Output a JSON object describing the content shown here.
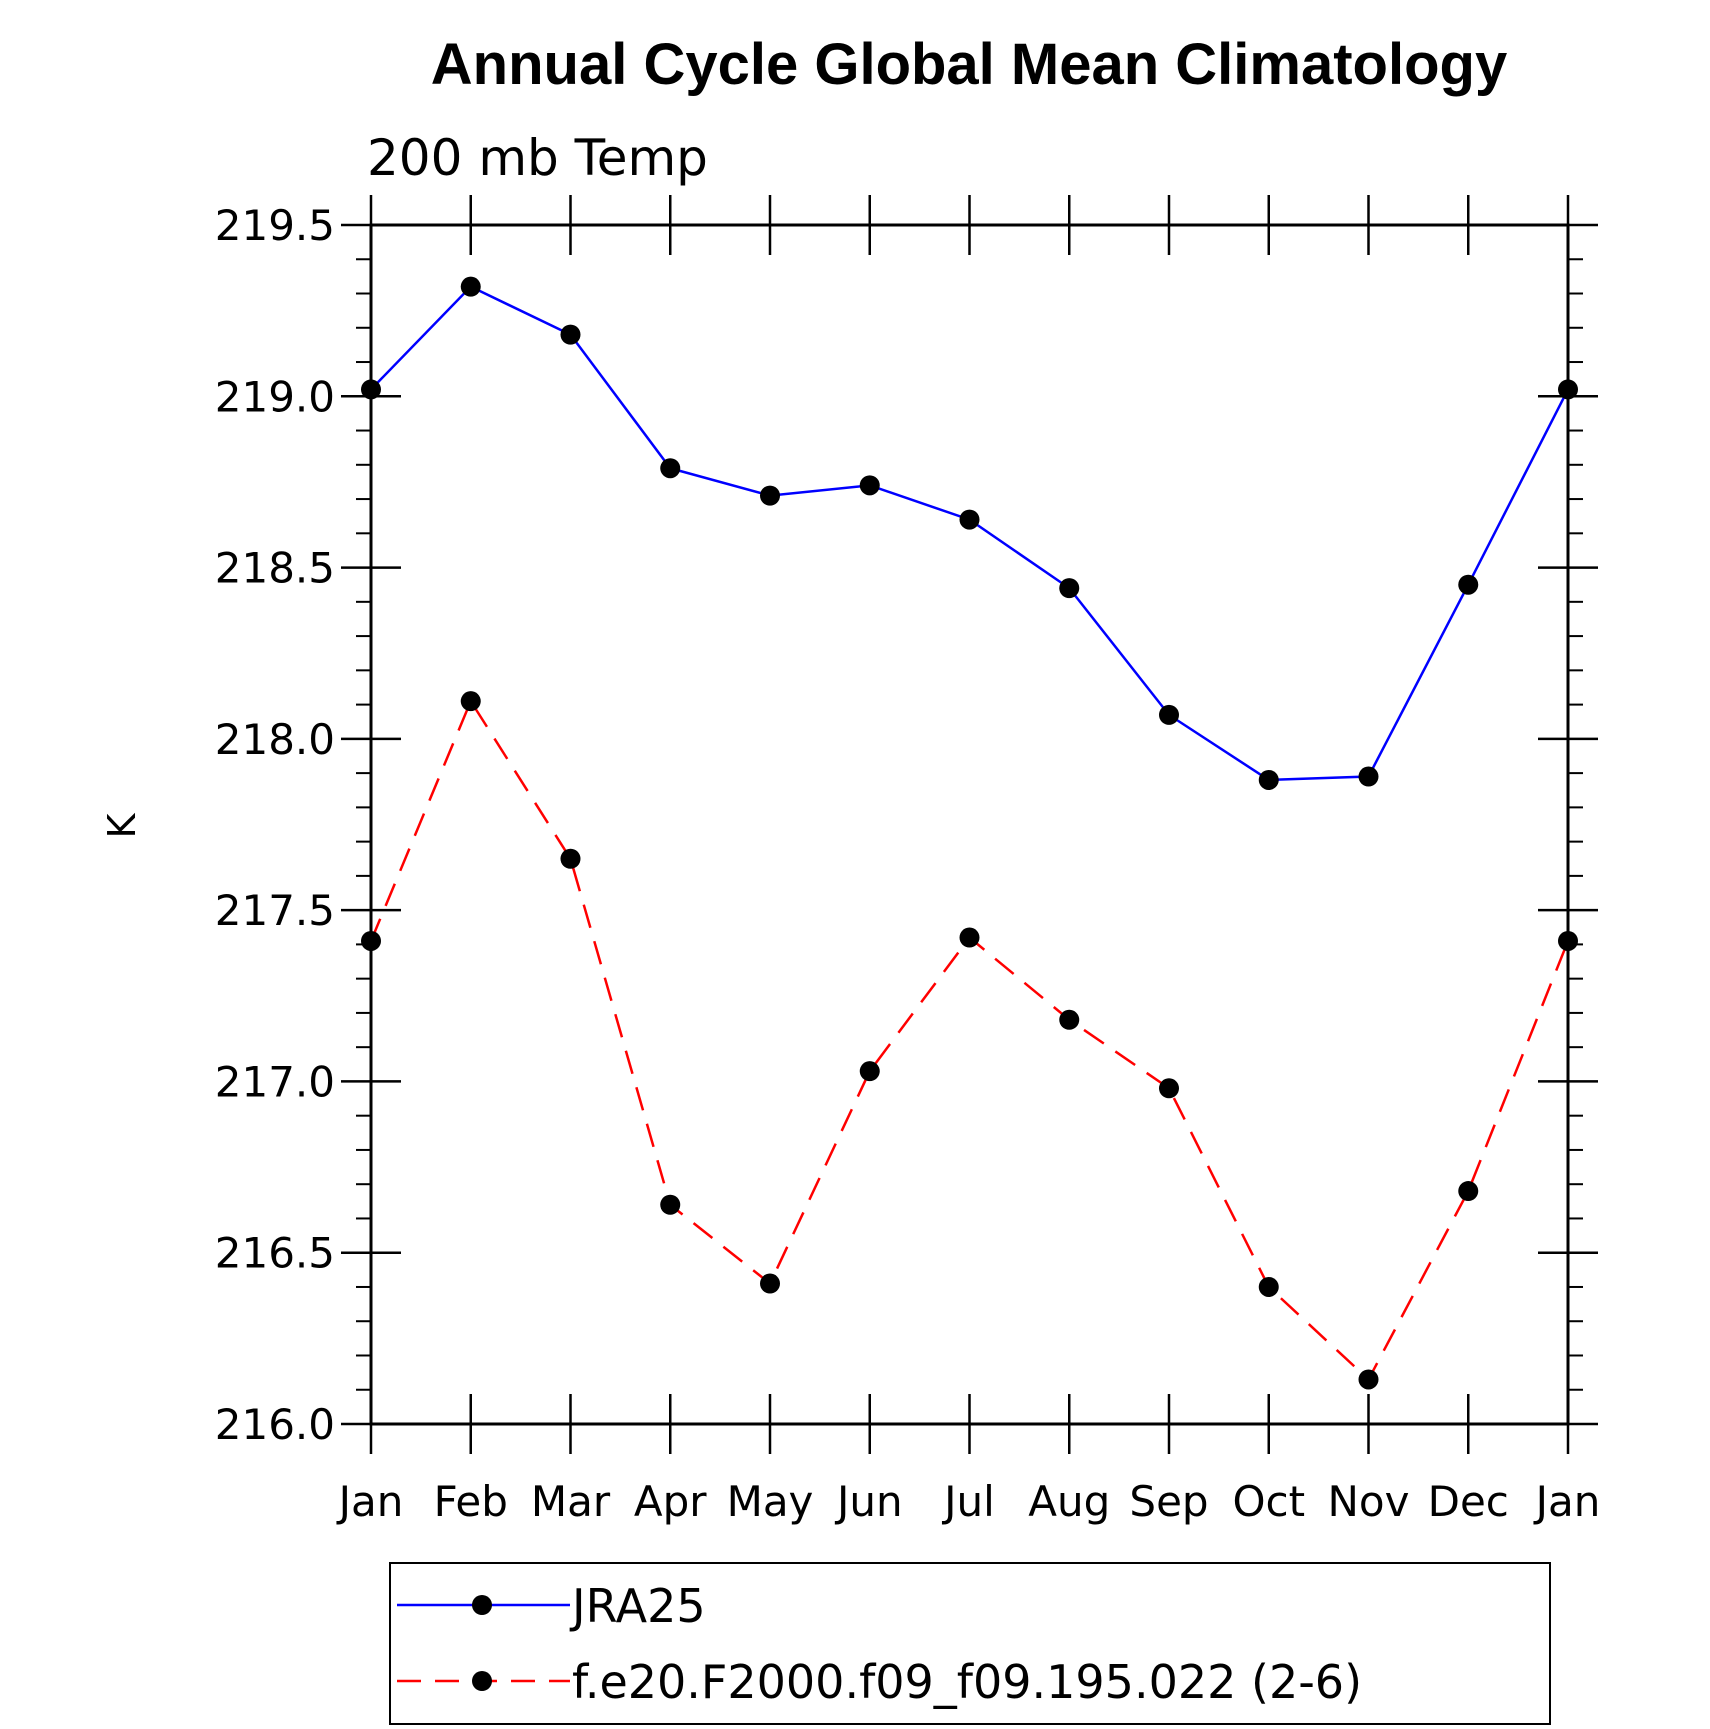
{
  "chart_data": {
    "type": "line",
    "title": "Annual Cycle Global Mean Climatology",
    "subtitle": "200 mb Temp",
    "ylabel": "K",
    "xlabel": "",
    "categories": [
      "Jan",
      "Feb",
      "Mar",
      "Apr",
      "May",
      "Jun",
      "Jul",
      "Aug",
      "Sep",
      "Oct",
      "Nov",
      "Dec",
      "Jan"
    ],
    "ylim": [
      216.0,
      219.5
    ],
    "yticks": [
      "216.0",
      "216.5",
      "217.0",
      "217.5",
      "218.0",
      "218.5",
      "219.0",
      "219.5"
    ],
    "series": [
      {
        "name": "JRA25",
        "color": "#0000ff",
        "dash": "solid",
        "values": [
          219.02,
          219.32,
          219.18,
          218.79,
          218.71,
          218.74,
          218.64,
          218.44,
          218.07,
          217.88,
          217.89,
          218.45,
          219.02
        ]
      },
      {
        "name": "f.e20.F2000.f09_f09.195.022 (2-6)",
        "color": "#ff0000",
        "dash": "dashed",
        "values": [
          217.41,
          218.11,
          217.65,
          216.64,
          216.41,
          217.03,
          217.42,
          217.18,
          216.98,
          216.4,
          216.13,
          216.68,
          217.41
        ]
      }
    ],
    "grid": false,
    "legend": "bottom"
  }
}
